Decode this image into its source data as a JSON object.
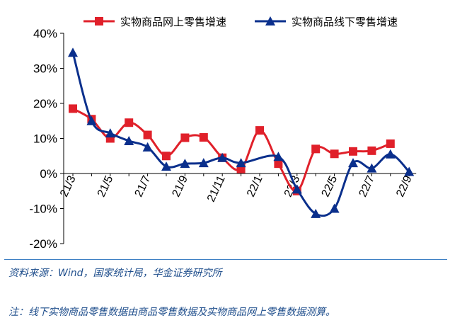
{
  "chart_data": {
    "type": "line",
    "x": [
      "21/3",
      "21/4",
      "21/5",
      "21/6",
      "21/7",
      "21/8",
      "21/9",
      "21/10",
      "21/11",
      "21/12",
      "22/1",
      "22/2",
      "22/3",
      "22/4",
      "22/5",
      "22/6",
      "22/7",
      "22/8",
      "22/9"
    ],
    "x_tick_labels": [
      "21/3",
      "21/5",
      "21/7",
      "21/9",
      "21/11",
      "22/1",
      "22/3",
      "22/5",
      "22/7",
      "22/9"
    ],
    "y_tick_labels": [
      "40%",
      "30%",
      "20%",
      "10%",
      "0%",
      "-10%",
      "-20%"
    ],
    "ylim": [
      -20,
      40
    ],
    "grid": false,
    "legend_position": "top",
    "series": [
      {
        "name": "实物商品网上零售增速",
        "color": "#e0202a",
        "marker": "square",
        "values": [
          18.5,
          15.5,
          10.0,
          14.5,
          11.0,
          5.0,
          10.2,
          10.3,
          4.5,
          1.3,
          12.3,
          2.8,
          -5.0,
          7.0,
          5.6,
          6.3,
          6.5,
          8.5,
          null
        ]
      },
      {
        "name": "实物商品线下零售增速",
        "color": "#0a2f8c",
        "marker": "triangle",
        "values": [
          34.5,
          15.0,
          11.5,
          9.3,
          7.5,
          2.0,
          2.8,
          3.0,
          4.5,
          3.0,
          null,
          4.8,
          -4.5,
          -11.5,
          -10.0,
          3.0,
          1.5,
          5.5,
          0.5
        ]
      }
    ]
  },
  "footer": {
    "source": "资料来源：Wind，国家统计局，华金证券研究所",
    "note": "注：线下实物商品零售数据由商品零售数据及实物商品网上零售数据测算。"
  }
}
